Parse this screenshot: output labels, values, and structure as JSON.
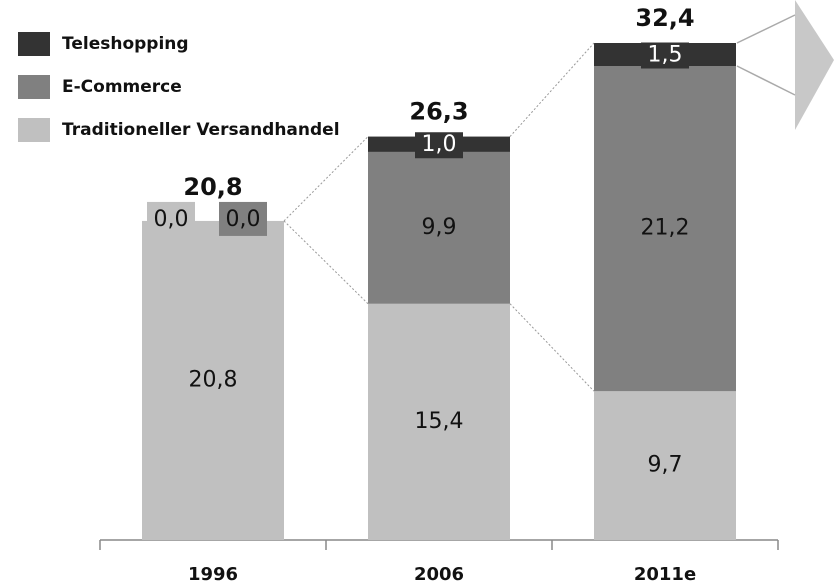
{
  "chart_data": {
    "type": "stacked-bar",
    "categories": [
      "1996",
      "2006",
      "2011e"
    ],
    "series": [
      {
        "name": "Traditioneller Versandhandel",
        "color": "#c0c0c0",
        "values": [
          20.8,
          15.4,
          9.7
        ],
        "value_labels": [
          "20,8",
          "15,4",
          "9,7"
        ]
      },
      {
        "name": "E-Commerce",
        "color": "#808080",
        "values": [
          0.0,
          9.9,
          21.2
        ],
        "value_labels": [
          "0,0",
          "9,9",
          "21,2"
        ]
      },
      {
        "name": "Teleshopping",
        "color": "#333333",
        "values": [
          0.0,
          1.0,
          1.5
        ],
        "value_labels": [
          "0,0",
          "1,0",
          "1,5"
        ]
      }
    ],
    "totals": [
      20.8,
      26.3,
      32.4
    ],
    "total_labels": [
      "20,8",
      "26,3",
      "32,4"
    ]
  }
}
